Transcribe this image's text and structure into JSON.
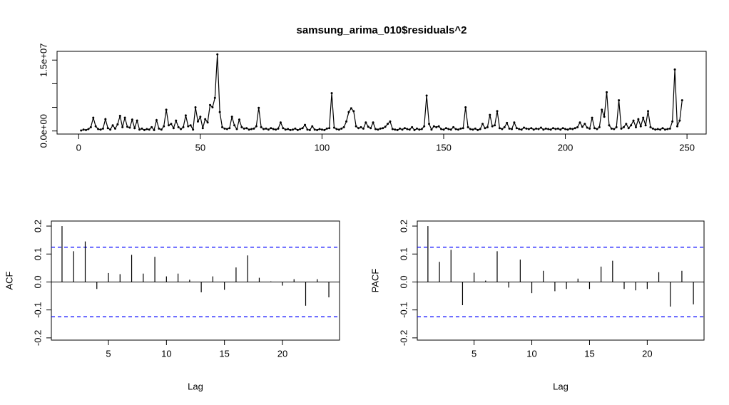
{
  "chart_data": [
    {
      "type": "line",
      "title": "samsung_arima_010$residuals^2",
      "color": "#000000",
      "x": [
        1,
        2,
        3,
        4,
        5,
        6,
        7,
        8,
        9,
        10,
        11,
        12,
        13,
        14,
        15,
        16,
        17,
        18,
        19,
        20,
        21,
        22,
        23,
        24,
        25,
        26,
        27,
        28,
        29,
        30,
        31,
        32,
        33,
        34,
        35,
        36,
        37,
        38,
        39,
        40,
        41,
        42,
        43,
        44,
        45,
        46,
        47,
        48,
        49,
        50,
        51,
        52,
        53,
        54,
        55,
        56,
        57,
        58,
        59,
        60,
        61,
        62,
        63,
        64,
        65,
        66,
        67,
        68,
        69,
        70,
        71,
        72,
        73,
        74,
        75,
        76,
        77,
        78,
        79,
        80,
        81,
        82,
        83,
        84,
        85,
        86,
        87,
        88,
        89,
        90,
        91,
        92,
        93,
        94,
        95,
        96,
        97,
        98,
        99,
        100,
        101,
        102,
        103,
        104,
        105,
        106,
        107,
        108,
        109,
        110,
        111,
        112,
        113,
        114,
        115,
        116,
        117,
        118,
        119,
        120,
        121,
        122,
        123,
        124,
        125,
        126,
        127,
        128,
        129,
        130,
        131,
        132,
        133,
        134,
        135,
        136,
        137,
        138,
        139,
        140,
        141,
        142,
        143,
        144,
        145,
        146,
        147,
        148,
        149,
        150,
        151,
        152,
        153,
        154,
        155,
        156,
        157,
        158,
        159,
        160,
        161,
        162,
        163,
        164,
        165,
        166,
        167,
        168,
        169,
        170,
        171,
        172,
        173,
        174,
        175,
        176,
        177,
        178,
        179,
        180,
        181,
        182,
        183,
        184,
        185,
        186,
        187,
        188,
        189,
        190,
        191,
        192,
        193,
        194,
        195,
        196,
        197,
        198,
        199,
        200,
        201,
        202,
        203,
        204,
        205,
        206,
        207,
        208,
        209,
        210,
        211,
        212,
        213,
        214,
        215,
        216,
        217,
        218,
        219,
        220,
        221,
        222,
        223,
        224,
        225,
        226,
        227,
        228,
        229,
        230,
        231,
        232,
        233,
        234,
        235,
        236,
        237,
        238,
        239,
        240,
        241,
        242,
        243,
        244,
        245,
        246,
        247,
        248
      ],
      "values": [
        100000,
        300000,
        200000,
        400000,
        800000,
        2800000,
        1000000,
        400000,
        300000,
        500000,
        2500000,
        600000,
        300000,
        1200000,
        500000,
        1400000,
        3200000,
        800000,
        2800000,
        900000,
        700000,
        2400000,
        600000,
        2200000,
        300000,
        500000,
        200000,
        400000,
        300000,
        800000,
        200000,
        2300000,
        500000,
        300000,
        1000000,
        4500000,
        1200000,
        1500000,
        600000,
        2200000,
        800000,
        400000,
        800000,
        3300000,
        1000000,
        1200000,
        300000,
        5000000,
        2000000,
        3000000,
        600000,
        2500000,
        1800000,
        5500000,
        5000000,
        7000000,
        16200000,
        4000000,
        800000,
        500000,
        400000,
        600000,
        3000000,
        1200000,
        400000,
        2400000,
        800000,
        500000,
        600000,
        300000,
        400000,
        500000,
        1000000,
        4900000,
        800000,
        400000,
        500000,
        300000,
        600000,
        400000,
        300000,
        500000,
        1800000,
        600000,
        300000,
        400000,
        200000,
        300000,
        500000,
        200000,
        400000,
        600000,
        1300000,
        300000,
        200000,
        1000000,
        300000,
        200000,
        400000,
        300000,
        200000,
        500000,
        600000,
        8000000,
        700000,
        400000,
        300000,
        500000,
        800000,
        2000000,
        4000000,
        4800000,
        4200000,
        1000000,
        600000,
        800000,
        500000,
        1800000,
        900000,
        600000,
        1800000,
        400000,
        300000,
        500000,
        600000,
        900000,
        1500000,
        2000000,
        400000,
        300000,
        200000,
        500000,
        300000,
        600000,
        400000,
        300000,
        800000,
        200000,
        500000,
        300000,
        400000,
        1000000,
        7500000,
        1500000,
        300000,
        1000000,
        800000,
        1000000,
        400000,
        300000,
        600000,
        400000,
        300000,
        800000,
        400000,
        300000,
        500000,
        600000,
        5000000,
        800000,
        400000,
        300000,
        500000,
        200000,
        400000,
        1500000,
        600000,
        800000,
        3400000,
        1000000,
        1200000,
        4200000,
        600000,
        400000,
        800000,
        1700000,
        500000,
        400000,
        1800000,
        600000,
        400000,
        300000,
        700000,
        500000,
        400000,
        600000,
        300000,
        500000,
        400000,
        700000,
        300000,
        500000,
        400000,
        300000,
        600000,
        400000,
        500000,
        300000,
        600000,
        400000,
        300000,
        500000,
        400000,
        600000,
        800000,
        1800000,
        900000,
        1500000,
        700000,
        500000,
        2800000,
        600000,
        400000,
        800000,
        4500000,
        3000000,
        8200000,
        1200000,
        500000,
        400000,
        800000,
        6500000,
        500000,
        800000,
        1500000,
        600000,
        1200000,
        2200000,
        800000,
        2500000,
        1000000,
        2800000,
        1200000,
        4200000,
        800000,
        500000,
        300000,
        400000,
        300000,
        600000,
        300000,
        400000,
        500000,
        2000000,
        13000000,
        1000000,
        2200000,
        6500000
      ],
      "xlim": [
        -8.88,
        257.88
      ],
      "xticks": [
        0,
        50,
        100,
        150,
        200,
        250
      ],
      "ylim": [
        -650000,
        16850000
      ],
      "yticks": [
        {
          "value": 0,
          "label": "0.0e+00"
        },
        {
          "value": 5000000,
          "label": null
        },
        {
          "value": 10000000,
          "label": null
        },
        {
          "value": 15000000,
          "label": "1.5e+07"
        }
      ]
    },
    {
      "type": "acf",
      "y_label": "ACF",
      "x_label": "Lag",
      "color": "#000000",
      "x": [
        1,
        2,
        3,
        4,
        5,
        6,
        7,
        8,
        9,
        10,
        11,
        12,
        13,
        14,
        15,
        16,
        17,
        18,
        19,
        20,
        21,
        22,
        23,
        24
      ],
      "values": [
        0.2,
        0.11,
        0.145,
        -0.025,
        0.032,
        0.028,
        0.097,
        0.03,
        0.09,
        0.02,
        0.03,
        0.008,
        -0.037,
        0.02,
        -0.028,
        0.052,
        0.095,
        0.015,
        0.002,
        -0.013,
        0.01,
        -0.085,
        0.01,
        -0.055
      ],
      "ci_lines": [
        0.1245,
        -0.1245
      ],
      "ci_color": "#0000ff",
      "xlim": [
        0.08,
        24.92
      ],
      "xticks": [
        5,
        10,
        15,
        20
      ],
      "ylim": [
        -0.208,
        0.218
      ],
      "yticks": [
        -0.2,
        -0.1,
        {
          "value": 0,
          "label": "0.0"
        },
        0.1,
        0.2
      ]
    },
    {
      "type": "acf",
      "y_label": "PACF",
      "x_label": "Lag",
      "color": "#000000",
      "x": [
        1,
        2,
        3,
        4,
        5,
        6,
        7,
        8,
        9,
        10,
        11,
        12,
        13,
        14,
        15,
        16,
        17,
        18,
        19,
        20,
        21,
        22,
        23,
        24
      ],
      "values": [
        0.2,
        0.072,
        0.115,
        -0.083,
        0.033,
        0.005,
        0.11,
        -0.02,
        0.08,
        -0.04,
        0.04,
        -0.033,
        -0.025,
        0.012,
        -0.025,
        0.055,
        0.076,
        -0.025,
        -0.03,
        -0.025,
        0.035,
        -0.088,
        0.04,
        -0.08
      ],
      "ci_lines": [
        0.1245,
        -0.1245
      ],
      "ci_color": "#0000ff",
      "xlim": [
        0.08,
        24.92
      ],
      "xticks": [
        5,
        10,
        15,
        20
      ],
      "ylim": [
        -0.208,
        0.218
      ],
      "yticks": [
        -0.2,
        -0.1,
        {
          "value": 0,
          "label": "0.0"
        },
        0.1,
        0.2
      ]
    }
  ]
}
